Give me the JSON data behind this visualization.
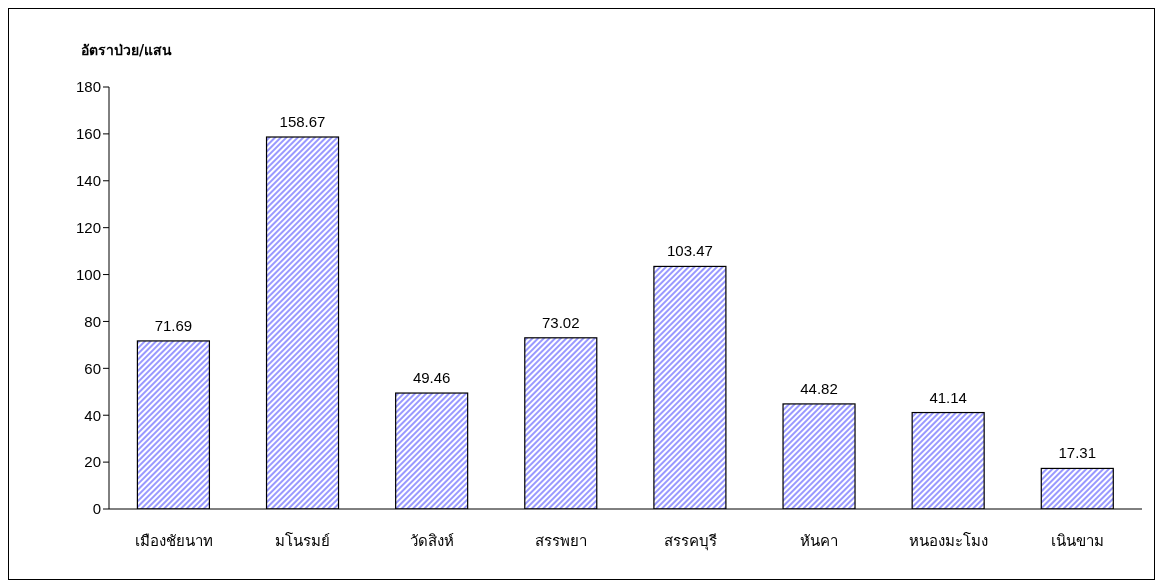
{
  "chart_data": {
    "type": "bar",
    "ylabel": "อัตราป่วย/แสน",
    "categories": [
      "เมืองชัยนาท",
      "มโนรมย์",
      "วัดสิงห์",
      "สรรพยา",
      "สรรคบุรี",
      "หันคา",
      "หนองมะโมง",
      "เนินขาม"
    ],
    "values": [
      71.69,
      158.67,
      49.46,
      73.02,
      103.47,
      44.82,
      41.14,
      17.31
    ],
    "color": "#9999ff",
    "ylim": [
      0,
      180
    ],
    "yticks": [
      0,
      20,
      40,
      60,
      80,
      100,
      120,
      140,
      160,
      180
    ],
    "data_labels": true,
    "grid": false,
    "legend": false
  }
}
